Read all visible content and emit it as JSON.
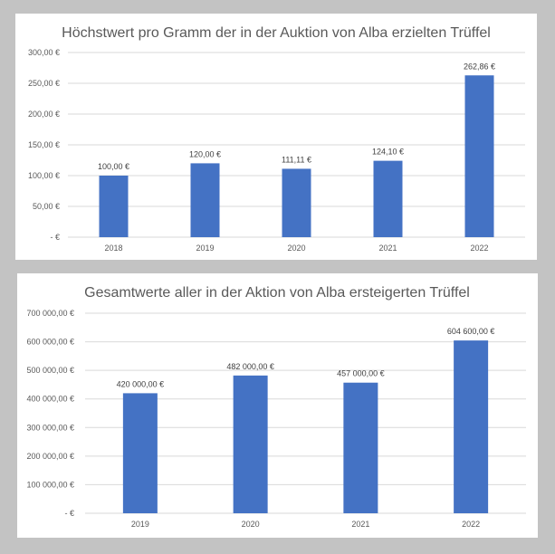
{
  "chart_data": [
    {
      "type": "bar",
      "title": "Höchstwert pro Gramm der in der Auktion von Alba erzielten Trüffel",
      "categories": [
        "2018",
        "2019",
        "2020",
        "2021",
        "2022"
      ],
      "values": [
        100.0,
        120.0,
        111.11,
        124.1,
        262.86
      ],
      "data_labels": [
        "100,00 €",
        "120,00 €",
        "111,11 €",
        "124,10 €",
        "262,86 €"
      ],
      "y_ticks": [
        0,
        50,
        100,
        150,
        200,
        250,
        300
      ],
      "y_tick_labels": [
        "-   €",
        "50,00 €",
        "100,00 €",
        "150,00 €",
        "200,00 €",
        "250,00 €",
        "300,00 €"
      ],
      "ylim": [
        0,
        300
      ],
      "xlabel": "",
      "ylabel": "",
      "grid": true,
      "legend": "none",
      "bar_color": "#4472c4"
    },
    {
      "type": "bar",
      "title": "Gesamtwerte aller in der Aktion von Alba ersteigerten Trüffel",
      "categories": [
        "2019",
        "2020",
        "2021",
        "2022"
      ],
      "values": [
        420000,
        482000,
        457000,
        604600
      ],
      "data_labels": [
        "420 000,00 €",
        "482 000,00 €",
        "457 000,00 €",
        "604 600,00 €"
      ],
      "y_ticks": [
        0,
        100000,
        200000,
        300000,
        400000,
        500000,
        600000,
        700000
      ],
      "y_tick_labels": [
        "-   €",
        "100 000,00 €",
        "200 000,00 €",
        "300 000,00 €",
        "400 000,00 €",
        "500 000,00 €",
        "600 000,00 €",
        "700 000,00 €"
      ],
      "ylim": [
        0,
        700000
      ],
      "xlabel": "",
      "ylabel": "",
      "grid": true,
      "legend": "none",
      "bar_color": "#4472c4"
    }
  ]
}
